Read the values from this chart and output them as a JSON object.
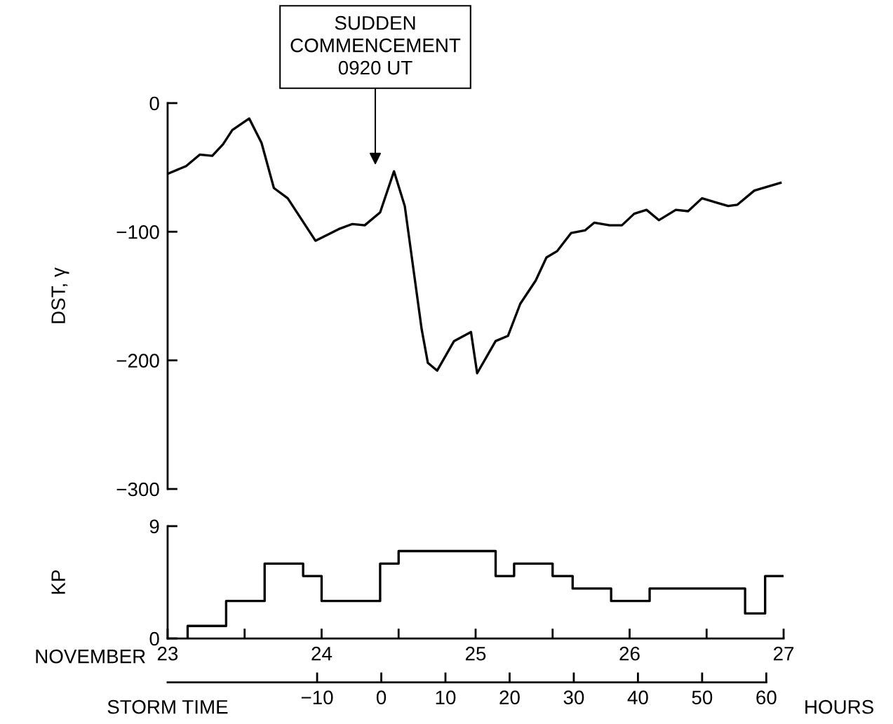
{
  "chart_data": [
    {
      "type": "line",
      "ylabel": "DST, γ",
      "xlim": [
        23,
        27
      ],
      "ylim": [
        -300,
        0
      ],
      "tick_labels": "y",
      "grid": false,
      "yticks": [
        0,
        {
          "value": -100,
          "label": "−100"
        },
        {
          "value": -200,
          "label": "−200"
        },
        {
          "value": -300,
          "label": "−300"
        }
      ],
      "x": [
        23.0,
        23.12,
        23.21,
        23.29,
        23.36,
        23.42,
        23.53,
        23.61,
        23.69,
        23.78,
        23.96,
        24.11,
        24.2,
        24.28,
        24.38,
        24.47,
        24.54,
        24.65,
        24.69,
        24.75,
        24.86,
        24.97,
        25.01,
        25.13,
        25.21,
        25.29,
        25.39,
        25.46,
        25.53,
        25.62,
        25.71,
        25.77,
        25.87,
        25.95,
        26.03,
        26.11,
        26.19,
        26.3,
        26.38,
        26.47,
        26.64,
        26.7,
        26.81,
        26.98
      ],
      "series": [
        {
          "color": "#000000",
          "values": [
            -55,
            -49,
            -40,
            -41,
            -32,
            -21,
            -12,
            -31,
            -66,
            -74,
            -107,
            -98,
            -94,
            -95,
            -85,
            -53,
            -80,
            -176,
            -202,
            -208,
            -185,
            -178,
            -210,
            -185,
            -181,
            -156,
            -138,
            -120,
            -115,
            -101,
            -99,
            -93,
            -95,
            -95,
            -86,
            -83,
            -91,
            -83,
            -84,
            -74,
            -80,
            -79,
            -68,
            -62
          ]
        }
      ],
      "annotations": [
        "SUDDEN\nCOMMENCEMENT\n0920 UT"
      ]
    },
    {
      "type": "step",
      "ylabel": "KP",
      "xlabel": "NOVEMBER",
      "xlim": [
        23,
        27
      ],
      "ylim": [
        0,
        9
      ],
      "yticks": [
        0,
        9
      ],
      "grid": false,
      "xticks": [
        23,
        {
          "value": 23.5,
          "label": null
        },
        24,
        {
          "value": 24.5,
          "label": null
        },
        25,
        {
          "value": 25.5,
          "label": null
        },
        26,
        {
          "value": 26.5,
          "label": null
        },
        27
      ],
      "x2label": "STORM TIME",
      "x2lim": [
        -33.3,
        62.7
      ],
      "x2ticks": [
        {
          "value": -10,
          "label": "−10"
        },
        0,
        10,
        20,
        30,
        40,
        50,
        60
      ],
      "x": [
        23.13,
        23.13,
        23.38,
        23.63,
        23.88,
        24.0,
        24.38,
        24.5,
        25.13,
        25.25,
        25.5,
        25.63,
        25.88,
        26.13,
        26.75,
        26.88,
        27.0
      ],
      "series": [
        {
          "color": "#000000",
          "values": [
            0,
            1,
            3,
            6,
            5,
            3,
            6,
            7,
            5,
            6,
            5,
            4,
            3,
            4,
            2,
            5,
            5
          ]
        }
      ],
      "annotations": [
        "HOURS"
      ]
    }
  ]
}
